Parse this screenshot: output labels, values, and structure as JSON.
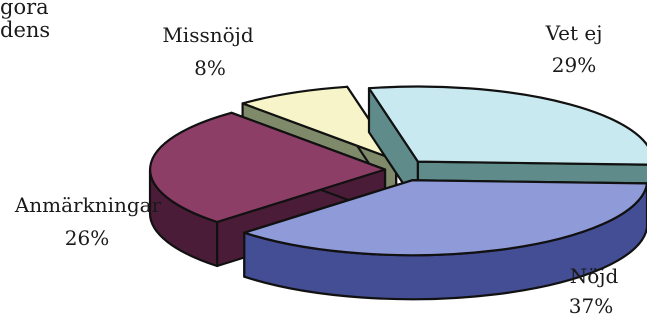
{
  "background_text": {
    "line1": "göra",
    "line2": "dens"
  },
  "chart_data": {
    "type": "pie",
    "style": "3d-exploded",
    "title": "",
    "legend": "none",
    "slices": [
      {
        "label": "Vet ej",
        "value": 29,
        "pct_label": "29%",
        "color": "#c9e9f0",
        "side_color": "#5f8c8a"
      },
      {
        "label": "Nöjd",
        "value": 37,
        "pct_label": "37%",
        "color": "#8f9ad8",
        "side_color": "#434e94"
      },
      {
        "label": "Anmärkningar",
        "value": 26,
        "pct_label": "26%",
        "color": "#8c3e66",
        "side_color": "#4b1c38"
      },
      {
        "label": "Missnöjd",
        "value": 8,
        "pct_label": "8%",
        "color": "#f6f4c8",
        "side_color": "#7f8a6a"
      }
    ]
  }
}
